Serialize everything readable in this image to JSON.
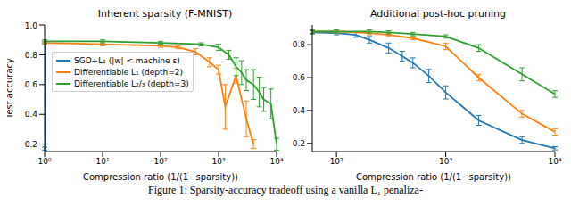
{
  "caption": "Figure 1: Sparsity-accuracy tradeoff using a vanilla L₁ penaliza-",
  "chart_data": [
    {
      "type": "line",
      "title": "Inherent sparsity (F-MNIST)",
      "x_label": "Compression ratio (1/(1−sparsity))",
      "y_label": "Test accuracy",
      "log": "x",
      "grid": false,
      "legend": "left",
      "xlim": [
        1,
        10000
      ],
      "xticks": [
        {
          "value": 1,
          "label": "10⁰"
        },
        {
          "value": 10,
          "label": "10¹"
        },
        {
          "value": 100,
          "label": "10²"
        },
        {
          "value": 1000,
          "label": "10³"
        },
        {
          "value": 10000,
          "label": "10⁴"
        }
      ],
      "ylim": [
        0.15,
        1.0
      ],
      "yticks": [
        0.2,
        0.4,
        0.6,
        0.8,
        {
          "value": 1,
          "label": "1.0"
        }
      ],
      "series": [
        {
          "name": "SGD+L₁ (|w| < machine ε)",
          "color": "#1f77b4",
          "x": [
            1,
            1
          ],
          "values": [
            0.88,
            0.17
          ],
          "errors": [
            0.01,
            0.01
          ]
        },
        {
          "name": "Differentiable L₁ (depth=2)",
          "color": "#ff7f0e",
          "x": [
            1,
            10,
            100,
            200,
            400,
            700,
            1000,
            1300,
            2000,
            3000,
            4000
          ],
          "values": [
            0.88,
            0.87,
            0.86,
            0.85,
            0.82,
            0.75,
            0.7,
            0.45,
            0.66,
            0.37,
            0.2
          ],
          "errors": [
            0.01,
            0.01,
            0.01,
            0.01,
            0.02,
            0.03,
            0.03,
            0.15,
            0.05,
            0.12,
            0.03
          ]
        },
        {
          "name": "Differentiable L₂/₃ (depth=3)",
          "color": "#2ca02c",
          "x": [
            1,
            10,
            100,
            500,
            1000,
            1500,
            2000,
            2500,
            3000,
            4000,
            5000,
            6000,
            8000,
            10000
          ],
          "values": [
            0.89,
            0.89,
            0.88,
            0.87,
            0.85,
            0.8,
            0.72,
            0.68,
            0.63,
            0.6,
            0.55,
            0.5,
            0.47,
            0.2
          ],
          "errors": [
            0.01,
            0.01,
            0.01,
            0.01,
            0.02,
            0.03,
            0.06,
            0.08,
            0.07,
            0.1,
            0.1,
            0.08,
            0.1,
            0.04
          ]
        }
      ]
    },
    {
      "type": "line",
      "title": "Additional post-hoc pruning",
      "x_label": "Compression ratio (1/(1−sparsity))",
      "log": "x",
      "grid": false,
      "xlim": [
        60,
        10000
      ],
      "xticks": [
        {
          "value": 100,
          "label": "10²"
        },
        {
          "value": 1000,
          "label": "10³"
        },
        {
          "value": 10000,
          "label": "10⁴"
        }
      ],
      "ylim": [
        0.15,
        0.92
      ],
      "yticks": [
        0.2,
        0.4,
        0.6,
        0.8
      ],
      "series": [
        {
          "name": "SGD+L₁ (|w| < machine ε)",
          "color": "#1f77b4",
          "x": [
            60,
            100,
            150,
            200,
            300,
            400,
            500,
            700,
            1000,
            2000,
            5000,
            10000
          ],
          "values": [
            0.875,
            0.87,
            0.86,
            0.83,
            0.78,
            0.73,
            0.69,
            0.61,
            0.51,
            0.34,
            0.22,
            0.17
          ],
          "errors": [
            0.01,
            0.01,
            0.015,
            0.02,
            0.03,
            0.03,
            0.03,
            0.04,
            0.04,
            0.03,
            0.02,
            0.01
          ]
        },
        {
          "name": "Differentiable L₁ (depth=2)",
          "color": "#ff7f0e",
          "x": [
            60,
            100,
            200,
            300,
            500,
            1000,
            2000,
            5000,
            10000
          ],
          "values": [
            0.88,
            0.88,
            0.87,
            0.86,
            0.84,
            0.79,
            0.6,
            0.38,
            0.27
          ],
          "errors": [
            0.01,
            0.01,
            0.01,
            0.01,
            0.01,
            0.02,
            0.02,
            0.02,
            0.02
          ]
        },
        {
          "name": "Differentiable L₂/₃ (depth=3)",
          "color": "#2ca02c",
          "x": [
            60,
            100,
            200,
            300,
            500,
            1000,
            2000,
            5000,
            10000
          ],
          "values": [
            0.88,
            0.88,
            0.88,
            0.875,
            0.865,
            0.85,
            0.78,
            0.62,
            0.5
          ],
          "errors": [
            0.01,
            0.01,
            0.01,
            0.01,
            0.01,
            0.01,
            0.02,
            0.04,
            0.02
          ]
        }
      ]
    }
  ]
}
